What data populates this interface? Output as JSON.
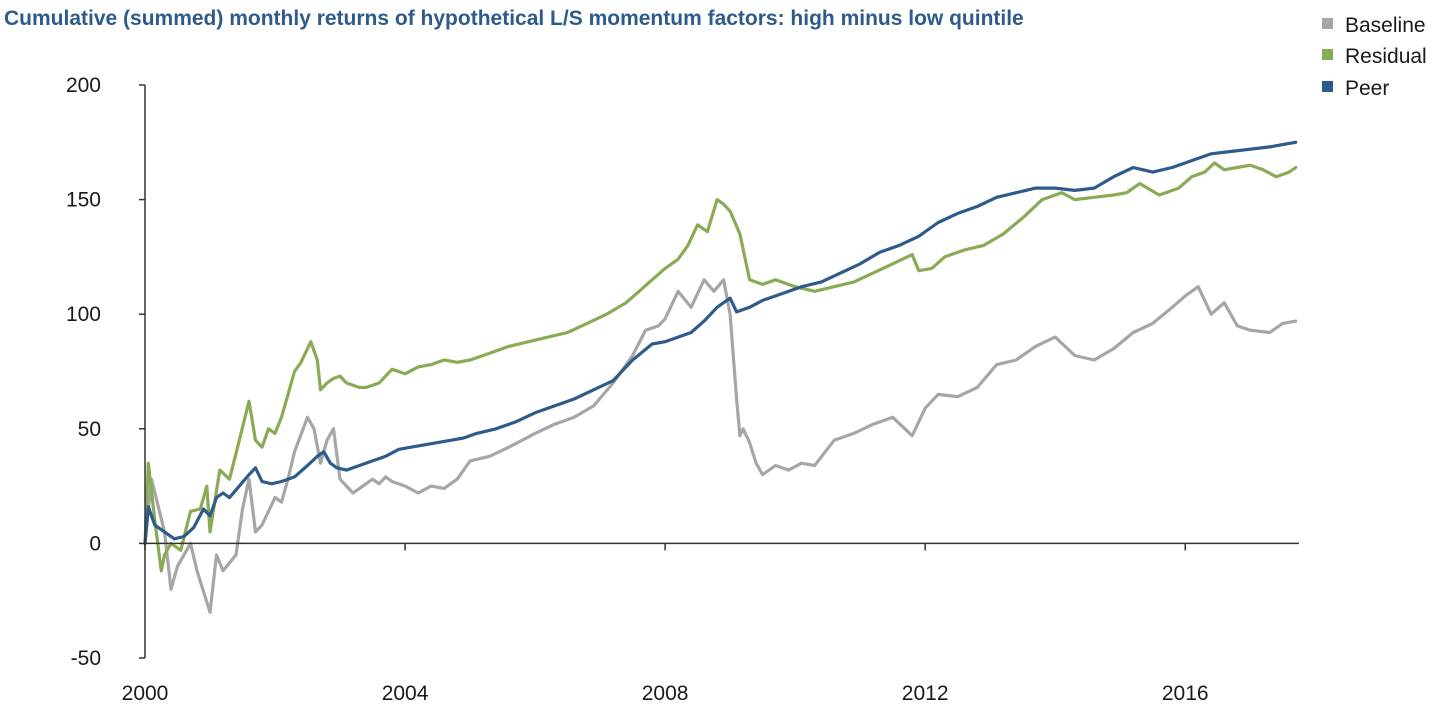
{
  "chart_data": {
    "type": "line",
    "title": "Cumulative (summed) monthly returns of hypothetical L/S momentum factors: high minus low quintile",
    "xlabel": "",
    "ylabel": "",
    "xlim": [
      2000.0,
      2017.75
    ],
    "ylim": [
      -50,
      200
    ],
    "y_ticks": [
      -50,
      0,
      50,
      100,
      150,
      200
    ],
    "x_ticks": [
      2000,
      2004,
      2008,
      2012,
      2016
    ],
    "grid": false,
    "legend_position": "top-right",
    "series": [
      {
        "name": "Baseline",
        "color": "#a6a6a6",
        "x": [
          2000.0,
          2000.1,
          2000.3,
          2000.4,
          2000.5,
          2000.7,
          2000.8,
          2001.0,
          2001.1,
          2001.2,
          2001.4,
          2001.5,
          2001.6,
          2001.7,
          2001.8,
          2002.0,
          2002.1,
          2002.2,
          2002.3,
          2002.5,
          2002.6,
          2002.7,
          2002.8,
          2002.9,
          2003.0,
          2003.1,
          2003.2,
          2003.3,
          2003.5,
          2003.6,
          2003.7,
          2003.8,
          2004.0,
          2004.2,
          2004.4,
          2004.6,
          2004.8,
          2005.0,
          2005.3,
          2005.6,
          2006.0,
          2006.3,
          2006.6,
          2006.9,
          2007.2,
          2007.5,
          2007.7,
          2007.9,
          2008.0,
          2008.2,
          2008.4,
          2008.6,
          2008.75,
          2008.9,
          2009.0,
          2009.1,
          2009.15,
          2009.2,
          2009.3,
          2009.4,
          2009.5,
          2009.7,
          2009.9,
          2010.1,
          2010.3,
          2010.6,
          2010.9,
          2011.2,
          2011.5,
          2011.8,
          2012.0,
          2012.2,
          2012.5,
          2012.8,
          2013.1,
          2013.4,
          2013.7,
          2014.0,
          2014.3,
          2014.6,
          2014.9,
          2015.2,
          2015.5,
          2015.8,
          2016.0,
          2016.2,
          2016.4,
          2016.6,
          2016.8,
          2017.0,
          2017.3,
          2017.5,
          2017.7
        ],
        "y": [
          0,
          28,
          5,
          -20,
          -10,
          0,
          -12,
          -30,
          -5,
          -12,
          -5,
          15,
          28,
          5,
          8,
          20,
          18,
          28,
          40,
          55,
          50,
          35,
          45,
          50,
          28,
          25,
          22,
          24,
          28,
          26,
          29,
          27,
          25,
          22,
          25,
          24,
          28,
          36,
          38,
          42,
          48,
          52,
          55,
          60,
          70,
          82,
          93,
          95,
          98,
          110,
          103,
          115,
          110,
          115,
          100,
          63,
          47,
          50,
          44,
          35,
          30,
          34,
          32,
          35,
          34,
          45,
          48,
          52,
          55,
          47,
          59,
          65,
          64,
          68,
          78,
          80,
          86,
          90,
          82,
          80,
          85,
          92,
          96,
          103,
          108,
          112,
          100,
          105,
          95,
          93,
          92,
          96,
          97
        ]
      },
      {
        "name": "Residual",
        "color": "#8aab55",
        "x": [
          2000.0,
          2000.05,
          2000.15,
          2000.25,
          2000.3,
          2000.4,
          2000.55,
          2000.7,
          2000.85,
          2000.95,
          2001.0,
          2001.15,
          2001.3,
          2001.45,
          2001.6,
          2001.7,
          2001.8,
          2001.9,
          2002.0,
          2002.1,
          2002.2,
          2002.3,
          2002.4,
          2002.55,
          2002.65,
          2002.7,
          2002.8,
          2002.9,
          2003.0,
          2003.1,
          2003.2,
          2003.3,
          2003.4,
          2003.6,
          2003.8,
          2004.0,
          2004.2,
          2004.4,
          2004.6,
          2004.8,
          2005.0,
          2005.3,
          2005.6,
          2005.9,
          2006.2,
          2006.5,
          2006.8,
          2007.1,
          2007.4,
          2007.6,
          2007.8,
          2008.0,
          2008.2,
          2008.35,
          2008.5,
          2008.65,
          2008.8,
          2008.9,
          2009.0,
          2009.15,
          2009.3,
          2009.5,
          2009.7,
          2010.0,
          2010.3,
          2010.6,
          2010.9,
          2011.2,
          2011.5,
          2011.8,
          2011.9,
          2012.1,
          2012.3,
          2012.6,
          2012.9,
          2013.2,
          2013.5,
          2013.8,
          2014.1,
          2014.3,
          2014.6,
          2014.9,
          2015.1,
          2015.3,
          2015.6,
          2015.9,
          2016.1,
          2016.3,
          2016.45,
          2016.6,
          2016.8,
          2017.0,
          2017.2,
          2017.4,
          2017.6,
          2017.7
        ],
        "y": [
          0,
          35,
          10,
          -12,
          -5,
          0,
          -3,
          14,
          15,
          25,
          5,
          32,
          28,
          45,
          62,
          45,
          42,
          50,
          48,
          55,
          65,
          75,
          79,
          88,
          80,
          67,
          70,
          72,
          73,
          70,
          69,
          68,
          68,
          70,
          76,
          74,
          77,
          78,
          80,
          79,
          80,
          83,
          86,
          88,
          90,
          92,
          96,
          100,
          105,
          110,
          115,
          120,
          124,
          130,
          139,
          136,
          150,
          148,
          145,
          135,
          115,
          113,
          115,
          112,
          110,
          112,
          114,
          118,
          122,
          126,
          119,
          120,
          125,
          128,
          130,
          135,
          142,
          150,
          153,
          150,
          151,
          152,
          153,
          157,
          152,
          155,
          160,
          162,
          166,
          163,
          164,
          165,
          163,
          160,
          162,
          164
        ]
      },
      {
        "name": "Peer",
        "color": "#2e5b8a",
        "x": [
          2000.0,
          2000.05,
          2000.15,
          2000.3,
          2000.45,
          2000.6,
          2000.75,
          2000.9,
          2001.0,
          2001.1,
          2001.2,
          2001.3,
          2001.45,
          2001.6,
          2001.7,
          2001.8,
          2001.95,
          2002.1,
          2002.3,
          2002.5,
          2002.65,
          2002.75,
          2002.85,
          2002.95,
          2003.1,
          2003.3,
          2003.5,
          2003.7,
          2003.9,
          2004.1,
          2004.3,
          2004.5,
          2004.7,
          2004.9,
          2005.1,
          2005.4,
          2005.7,
          2006.0,
          2006.3,
          2006.6,
          2006.9,
          2007.2,
          2007.5,
          2007.8,
          2008.0,
          2008.2,
          2008.4,
          2008.6,
          2008.8,
          2008.9,
          2009.0,
          2009.1,
          2009.3,
          2009.5,
          2009.8,
          2010.1,
          2010.4,
          2010.7,
          2011.0,
          2011.3,
          2011.6,
          2011.9,
          2012.2,
          2012.5,
          2012.8,
          2013.1,
          2013.4,
          2013.7,
          2014.0,
          2014.3,
          2014.6,
          2014.9,
          2015.2,
          2015.5,
          2015.8,
          2016.1,
          2016.4,
          2016.7,
          2017.0,
          2017.3,
          2017.5,
          2017.7
        ],
        "y": [
          0,
          16,
          8,
          5,
          2,
          3,
          7,
          15,
          12,
          20,
          22,
          20,
          25,
          30,
          33,
          27,
          26,
          27,
          29,
          34,
          38,
          40,
          35,
          33,
          32,
          34,
          36,
          38,
          41,
          42,
          43,
          44,
          45,
          46,
          48,
          50,
          53,
          57,
          60,
          63,
          67,
          71,
          80,
          87,
          88,
          90,
          92,
          97,
          103,
          105,
          107,
          101,
          103,
          106,
          109,
          112,
          114,
          118,
          122,
          127,
          130,
          134,
          140,
          144,
          147,
          151,
          153,
          155,
          155,
          154,
          155,
          160,
          164,
          162,
          164,
          167,
          170,
          171,
          172,
          173,
          174,
          175
        ]
      }
    ]
  }
}
